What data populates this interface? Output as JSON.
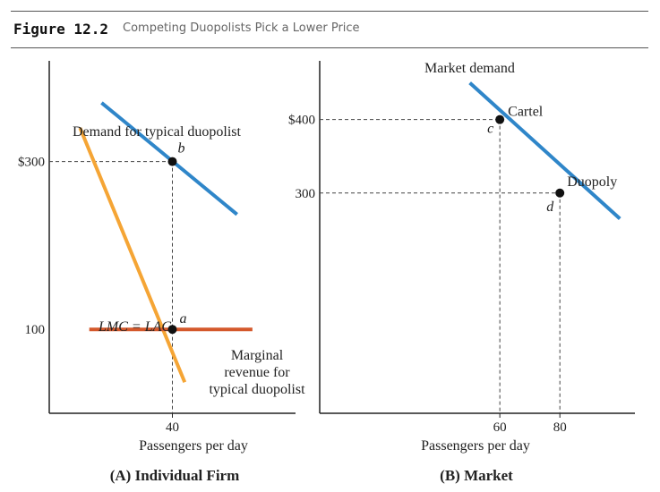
{
  "figure": {
    "label": "Figure 12.2",
    "title": "Competing Duopolists Pick a Lower Price"
  },
  "colors": {
    "demand": "#2f86c9",
    "marginal_revenue": "#f5a535",
    "cost": "#d4582b",
    "axis": "#222222",
    "guide": "#444444"
  },
  "chart_data": [
    {
      "type": "line",
      "panel_title": "(A) Individual Firm",
      "xlabel": "Passengers per day",
      "ylabel": "",
      "xlim": [
        0,
        80
      ],
      "ylim": [
        0,
        420
      ],
      "x_ticks": [
        {
          "value": 40,
          "label": "40"
        }
      ],
      "y_ticks": [
        {
          "value": 300,
          "label": "$300"
        },
        {
          "value": 100,
          "label": "100"
        }
      ],
      "series": [
        {
          "key": "demand",
          "name": "Demand for typical duopolist",
          "points": [
            [
              17,
              370
            ],
            [
              61,
              237
            ]
          ]
        },
        {
          "key": "mr",
          "name": "Marginal revenue for typical duopolist",
          "points": [
            [
              10,
              340
            ],
            [
              44,
              37
            ]
          ]
        },
        {
          "key": "cost",
          "name": "LMC = LAC",
          "points": [
            [
              13,
              100
            ],
            [
              66,
              100
            ]
          ]
        }
      ],
      "points": [
        {
          "label": "b",
          "x": 40,
          "y": 300
        },
        {
          "label": "a",
          "x": 40,
          "y": 100
        }
      ],
      "annotations": {
        "demand": "Demand for typical duopolist",
        "cost": "LMC = LAC",
        "mr_lines": [
          "Marginal",
          "revenue for",
          "typical duopolist"
        ]
      }
    },
    {
      "type": "line",
      "panel_title": "(B) Market",
      "xlabel": "Passengers per day",
      "ylabel": "",
      "xlim": [
        0,
        105
      ],
      "ylim": [
        0,
        480
      ],
      "x_ticks": [
        {
          "value": 60,
          "label": "60"
        },
        {
          "value": 80,
          "label": "80"
        }
      ],
      "y_ticks": [
        {
          "value": 400,
          "label": "$400"
        },
        {
          "value": 300,
          "label": "300"
        }
      ],
      "series": [
        {
          "key": "market_demand",
          "name": "Market demand",
          "points": [
            [
              50,
              450
            ],
            [
              100,
              265
            ]
          ]
        }
      ],
      "points": [
        {
          "label": "c",
          "name": "Cartel",
          "x": 60,
          "y": 400
        },
        {
          "label": "d",
          "name": "Duopoly",
          "x": 80,
          "y": 300
        }
      ],
      "annotations": {
        "demand": "Market demand"
      }
    }
  ]
}
